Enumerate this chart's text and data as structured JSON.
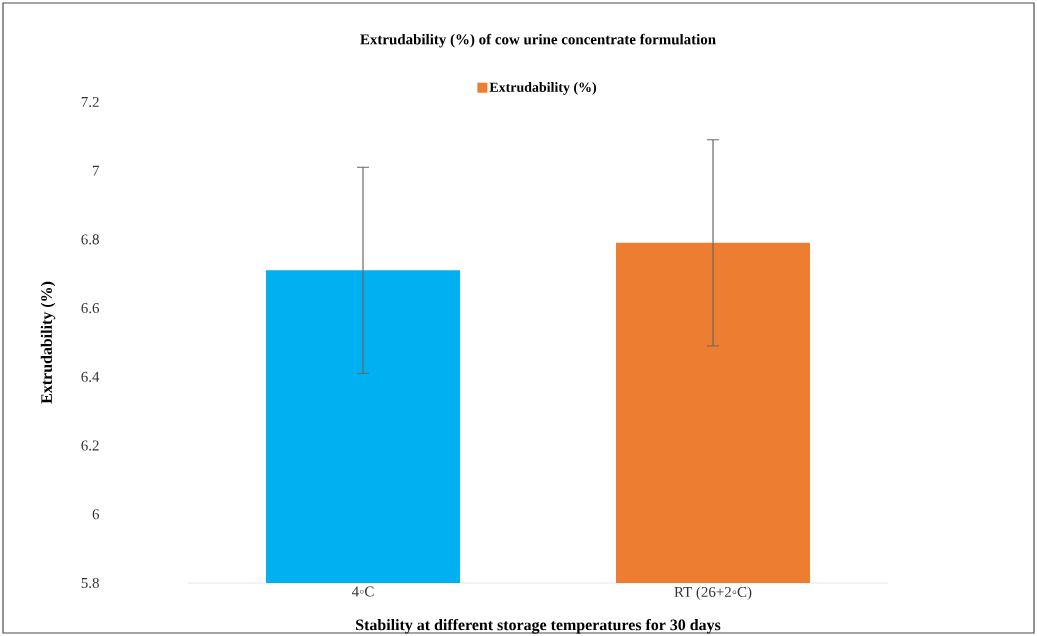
{
  "chart_data": {
    "type": "bar",
    "title": "Extrudability (%) of cow urine concentrate formulation",
    "xlabel": "Stability at different storage temperatures for 30 days",
    "ylabel": "Extrudability (%)",
    "categories": [
      "4◦C",
      "RT (26+2◦C)"
    ],
    "series": [
      {
        "name": "Extrudability (%)",
        "color": "#ed7d31",
        "colors": [
          "#00b0f0",
          "#ed7d31"
        ],
        "values": [
          6.71,
          6.79
        ],
        "errors": [
          0.3,
          0.3
        ]
      }
    ],
    "ylim": [
      5.8,
      7.2
    ],
    "yticks": [
      5.8,
      6,
      6.2,
      6.4,
      6.6,
      6.8,
      7,
      7.2
    ],
    "legend": "top"
  }
}
